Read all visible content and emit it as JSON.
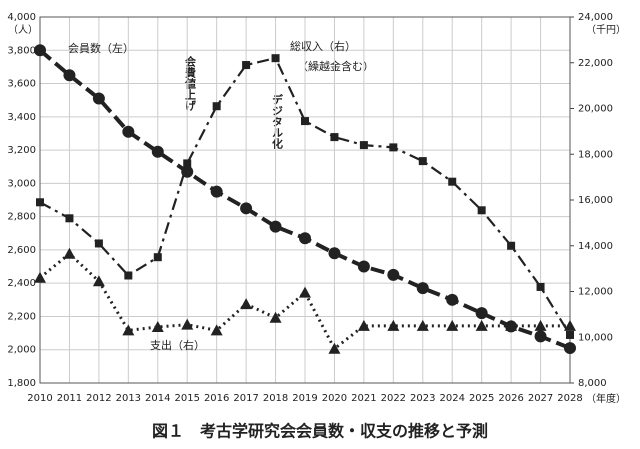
{
  "chart_data": {
    "type": "line",
    "title": "図１　考古学研究会会員数・収支の推移と予測",
    "y_unit": "（人）",
    "y2_unit": "（千円）",
    "x_unit": "（年度）",
    "categories": [
      "2010",
      "2011",
      "2012",
      "2013",
      "2014",
      "2015",
      "2016",
      "2017",
      "2018",
      "2019",
      "2020",
      "2021",
      "2022",
      "2023",
      "2024",
      "2025",
      "2026",
      "2027",
      "2028"
    ],
    "series": [
      {
        "name": "会員数（左）",
        "color": "#222222",
        "marker": "circle",
        "dash": "dashed",
        "values": [
          3800,
          3650,
          3510,
          3310,
          3190,
          3070,
          2950,
          2850,
          2740,
          2670,
          2580,
          2500,
          2450,
          2370,
          2300,
          2220,
          2140,
          2080,
          2010
        ]
      },
      {
        "name": "総収入（右）",
        "color": "#222222",
        "marker": "square",
        "dash": "dashdot",
        "axis": "y2",
        "values": [
          15900,
          15200,
          14100,
          12700,
          13500,
          17600,
          20100,
          21900,
          22200,
          19450,
          18750,
          18400,
          18300,
          17700,
          16800,
          15550,
          14000,
          12200,
          10100
        ]
      },
      {
        "name": "支出（右）",
        "color": "#222222",
        "marker": "triangle",
        "dash": "dotted",
        "axis": "y2",
        "values": [
          12600,
          13650,
          12450,
          10300,
          10450,
          10550,
          10300,
          11450,
          10850,
          11950,
          9500,
          10500,
          10500,
          10500,
          10500,
          10500,
          10500,
          10500,
          10500
        ]
      }
    ],
    "annotations": [
      "（繰越金含む）",
      "会費値上げ",
      "デジタル化"
    ],
    "ylim": [
      1800,
      4000
    ],
    "yticks": [
      {
        "value": 1800,
        "label": "1,800"
      },
      {
        "value": 2000,
        "label": "2,000"
      },
      {
        "value": 2200,
        "label": "2,200"
      },
      {
        "value": 2400,
        "label": "2,400"
      },
      {
        "value": 2600,
        "label": "2,600"
      },
      {
        "value": 2800,
        "label": "2,800"
      },
      {
        "value": 3000,
        "label": "3,000"
      },
      {
        "value": 3200,
        "label": "3,200"
      },
      {
        "value": 3400,
        "label": "3,400"
      },
      {
        "value": 3600,
        "label": "3,600"
      },
      {
        "value": 3800,
        "label": "3,800"
      },
      {
        "value": 4000,
        "label": "4,000"
      }
    ],
    "y2lim": [
      8000,
      24000
    ],
    "y2ticks": [
      {
        "value": 8000,
        "label": "8,000"
      },
      {
        "value": 10000,
        "label": "10,000"
      },
      {
        "value": 12000,
        "label": "12,000"
      },
      {
        "value": 14000,
        "label": "14,000"
      },
      {
        "value": 16000,
        "label": "16,000"
      },
      {
        "value": 18000,
        "label": "18,000"
      },
      {
        "value": 20000,
        "label": "20,000"
      },
      {
        "value": 22000,
        "label": "22,000"
      },
      {
        "value": 24000,
        "label": "24,000"
      }
    ],
    "grid": true
  }
}
